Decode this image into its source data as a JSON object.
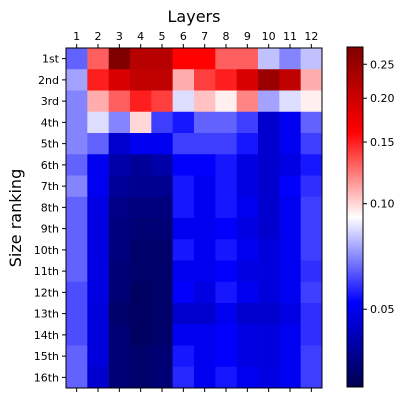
{
  "chart_data": {
    "type": "heatmap",
    "title": "Layers",
    "ylabel": "Size ranking",
    "x_categories": [
      "1",
      "2",
      "3",
      "4",
      "5",
      "6",
      "7",
      "8",
      "9",
      "10",
      "11",
      "12"
    ],
    "y_categories": [
      "1st",
      "2nd",
      "3rd",
      "4th",
      "5th",
      "6th",
      "7th",
      "8th",
      "9th",
      "10th",
      "11th",
      "12th",
      "13th",
      "14th",
      "15th",
      "16th"
    ],
    "x_axis_position": "top",
    "colormap": "seismic",
    "colorbar": {
      "scale": "log",
      "range": [
        0.03,
        0.28
      ],
      "ticks": [
        0.05,
        0.1,
        0.15,
        0.2,
        0.25
      ],
      "tick_labels": [
        "0.05",
        "0.10",
        "0.15",
        "0.20",
        "0.25"
      ]
    },
    "values": [
      [
        0.065,
        0.13,
        0.28,
        0.22,
        0.22,
        0.16,
        0.16,
        0.13,
        0.13,
        0.08,
        0.07,
        0.08
      ],
      [
        0.075,
        0.15,
        0.19,
        0.21,
        0.21,
        0.11,
        0.14,
        0.15,
        0.19,
        0.25,
        0.21,
        0.11
      ],
      [
        0.07,
        0.11,
        0.13,
        0.15,
        0.14,
        0.085,
        0.105,
        0.095,
        0.12,
        0.075,
        0.085,
        0.095
      ],
      [
        0.07,
        0.085,
        0.07,
        0.1,
        0.06,
        0.055,
        0.065,
        0.065,
        0.06,
        0.045,
        0.05,
        0.065
      ],
      [
        0.07,
        0.065,
        0.045,
        0.05,
        0.05,
        0.06,
        0.06,
        0.06,
        0.055,
        0.045,
        0.05,
        0.06
      ],
      [
        0.065,
        0.05,
        0.04,
        0.038,
        0.04,
        0.052,
        0.052,
        0.055,
        0.048,
        0.045,
        0.048,
        0.055
      ],
      [
        0.07,
        0.05,
        0.038,
        0.037,
        0.037,
        0.055,
        0.05,
        0.055,
        0.048,
        0.045,
        0.052,
        0.058
      ],
      [
        0.065,
        0.048,
        0.036,
        0.035,
        0.035,
        0.055,
        0.05,
        0.055,
        0.05,
        0.045,
        0.05,
        0.06
      ],
      [
        0.065,
        0.048,
        0.035,
        0.034,
        0.034,
        0.05,
        0.05,
        0.052,
        0.048,
        0.045,
        0.05,
        0.06
      ],
      [
        0.065,
        0.048,
        0.035,
        0.033,
        0.033,
        0.055,
        0.05,
        0.055,
        0.05,
        0.047,
        0.05,
        0.06
      ],
      [
        0.065,
        0.048,
        0.034,
        0.033,
        0.033,
        0.05,
        0.05,
        0.052,
        0.048,
        0.047,
        0.05,
        0.058
      ],
      [
        0.062,
        0.048,
        0.034,
        0.032,
        0.033,
        0.052,
        0.048,
        0.055,
        0.05,
        0.047,
        0.05,
        0.06
      ],
      [
        0.062,
        0.047,
        0.033,
        0.032,
        0.033,
        0.045,
        0.045,
        0.05,
        0.045,
        0.045,
        0.048,
        0.058
      ],
      [
        0.062,
        0.047,
        0.034,
        0.032,
        0.033,
        0.05,
        0.05,
        0.052,
        0.048,
        0.047,
        0.05,
        0.058
      ],
      [
        0.065,
        0.047,
        0.034,
        0.033,
        0.034,
        0.055,
        0.05,
        0.052,
        0.048,
        0.047,
        0.05,
        0.06
      ],
      [
        0.065,
        0.045,
        0.034,
        0.033,
        0.034,
        0.057,
        0.05,
        0.055,
        0.05,
        0.048,
        0.05,
        0.06
      ]
    ]
  }
}
